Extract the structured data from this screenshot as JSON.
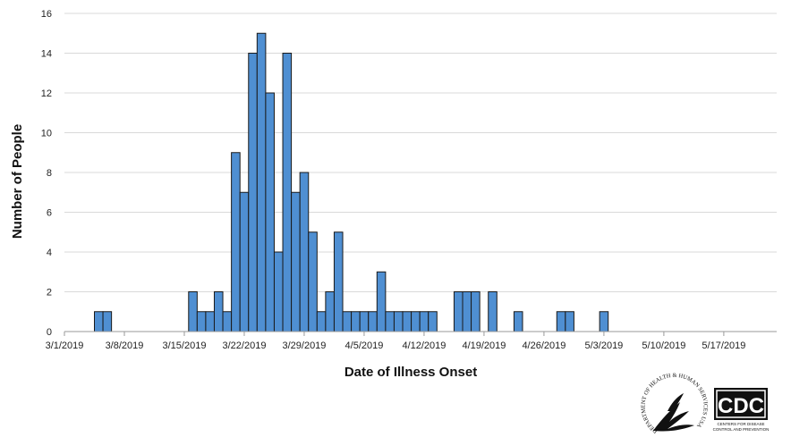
{
  "chart_data": {
    "type": "bar",
    "title": "",
    "xlabel": "Date of Illness Onset",
    "ylabel": "Number of People",
    "ylim": [
      0,
      16
    ],
    "yticks": [
      0,
      2,
      4,
      6,
      8,
      10,
      12,
      14,
      16
    ],
    "x_tick_labels": [
      "3/1/2019",
      "3/8/2019",
      "3/15/2019",
      "3/22/2019",
      "3/29/2019",
      "4/5/2019",
      "4/12/2019",
      "4/19/2019",
      "4/26/2019",
      "5/3/2019",
      "5/10/2019",
      "5/17/2019"
    ],
    "grid": "horizontal",
    "legend": "none",
    "bar_color": "#4f8fd2",
    "points": [
      {
        "date": "3/5/2019",
        "value": 1
      },
      {
        "date": "3/6/2019",
        "value": 1
      },
      {
        "date": "3/16/2019",
        "value": 2
      },
      {
        "date": "3/17/2019",
        "value": 1
      },
      {
        "date": "3/18/2019",
        "value": 1
      },
      {
        "date": "3/19/2019",
        "value": 2
      },
      {
        "date": "3/20/2019",
        "value": 1
      },
      {
        "date": "3/21/2019",
        "value": 9
      },
      {
        "date": "3/22/2019",
        "value": 7
      },
      {
        "date": "3/23/2019",
        "value": 14
      },
      {
        "date": "3/24/2019",
        "value": 15
      },
      {
        "date": "3/25/2019",
        "value": 12
      },
      {
        "date": "3/26/2019",
        "value": 4
      },
      {
        "date": "3/27/2019",
        "value": 14
      },
      {
        "date": "3/28/2019",
        "value": 7
      },
      {
        "date": "3/29/2019",
        "value": 8
      },
      {
        "date": "3/30/2019",
        "value": 5
      },
      {
        "date": "3/31/2019",
        "value": 1
      },
      {
        "date": "4/1/2019",
        "value": 2
      },
      {
        "date": "4/2/2019",
        "value": 5
      },
      {
        "date": "4/3/2019",
        "value": 1
      },
      {
        "date": "4/4/2019",
        "value": 1
      },
      {
        "date": "4/5/2019",
        "value": 1
      },
      {
        "date": "4/6/2019",
        "value": 1
      },
      {
        "date": "4/7/2019",
        "value": 3
      },
      {
        "date": "4/8/2019",
        "value": 1
      },
      {
        "date": "4/9/2019",
        "value": 1
      },
      {
        "date": "4/10/2019",
        "value": 1
      },
      {
        "date": "4/11/2019",
        "value": 1
      },
      {
        "date": "4/12/2019",
        "value": 1
      },
      {
        "date": "4/13/2019",
        "value": 1
      },
      {
        "date": "4/16/2019",
        "value": 2
      },
      {
        "date": "4/17/2019",
        "value": 2
      },
      {
        "date": "4/18/2019",
        "value": 2
      },
      {
        "date": "4/20/2019",
        "value": 2
      },
      {
        "date": "4/23/2019",
        "value": 1
      },
      {
        "date": "4/28/2019",
        "value": 1
      },
      {
        "date": "4/29/2019",
        "value": 1
      },
      {
        "date": "5/3/2019",
        "value": 1
      }
    ]
  },
  "logos": {
    "hhs_icon": "hhs-eagle-seal-icon",
    "hhs_text": "DEPARTMENT OF HEALTH & HUMAN SERVICES USA",
    "cdc_icon": "cdc-logo-icon",
    "cdc_text": "CDC",
    "cdc_subtext_1": "CENTERS FOR DISEASE",
    "cdc_subtext_2": "CONTROL AND PREVENTION"
  }
}
